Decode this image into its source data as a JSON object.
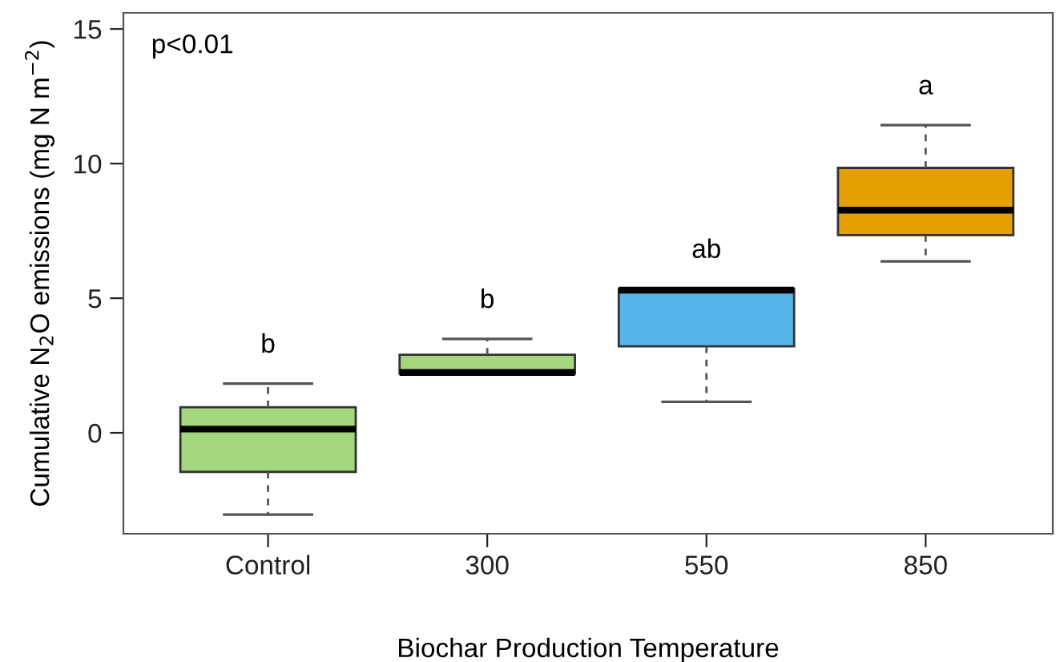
{
  "chart_data": {
    "type": "box",
    "xlabel": "Biochar Production Temperature",
    "ylabel": "Cumulative N$_{2}$O emissions (mg N m$^{−2}$)",
    "categories": [
      "Control",
      "300",
      "550",
      "850"
    ],
    "colors": [
      "#a5d77f",
      "#a5d77f",
      "#56b4e9",
      "#e69f00"
    ],
    "boxes": [
      {
        "low": -3.04,
        "q1": -1.45,
        "median": 0.14,
        "q3": 0.95,
        "high": 1.83
      },
      {
        "low": 2.2,
        "q1": 2.2,
        "median": 2.24,
        "q3": 2.9,
        "high": 3.49
      },
      {
        "low": 1.15,
        "q1": 3.21,
        "median": 5.3,
        "q3": 5.35,
        "high": 5.35
      },
      {
        "low": 6.37,
        "q1": 7.34,
        "median": 8.27,
        "q3": 9.84,
        "high": 11.43
      }
    ],
    "ylim": [
      -3.75,
      15.6
    ],
    "yticks": [
      0,
      5,
      10,
      15
    ],
    "grid": false,
    "annotations": [
      "p<0.01",
      "b",
      "b",
      "ab",
      "a"
    ]
  }
}
